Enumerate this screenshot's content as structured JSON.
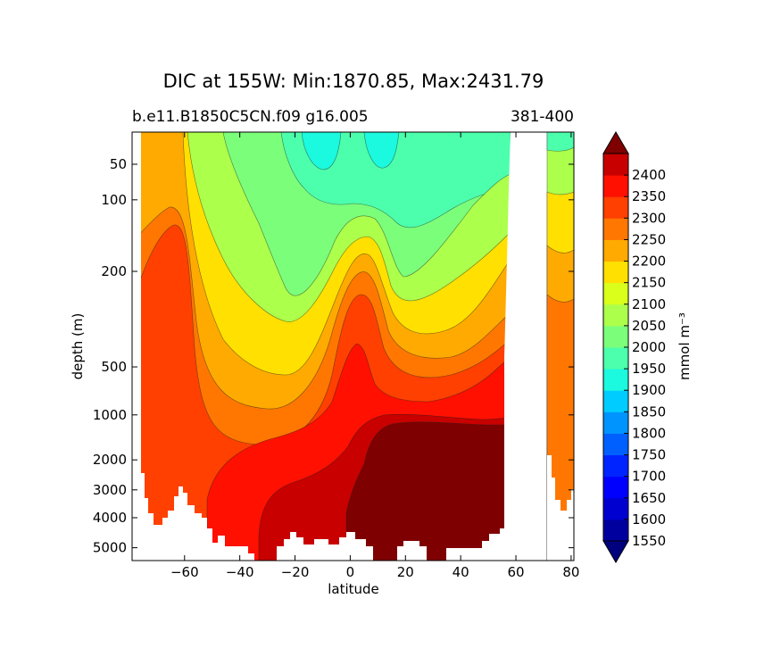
{
  "chart_data": {
    "type": "contourf",
    "title": "DIC at 155W: Min:1870.85, Max:2431.79",
    "subtitle_left": "b.e11.B1850C5CN.f09 g16.005",
    "subtitle_right": "381-400",
    "xlabel": "latitude",
    "ylabel": "depth (m)",
    "xlim": [
      -79,
      81
    ],
    "x_ticks": [
      -60,
      -40,
      -20,
      0,
      20,
      40,
      60,
      80
    ],
    "x_tick_labels": [
      "−60",
      "−40",
      "−20",
      "0",
      "20",
      "40",
      "60",
      "80"
    ],
    "ylim_depth": [
      5400,
      15
    ],
    "y_scale": "nonlinear-depth (compressed at depth)",
    "y_ticks": [
      50,
      100,
      200,
      500,
      1000,
      2000,
      3000,
      4000,
      5000
    ],
    "y_tick_labels": [
      "50",
      "100",
      "200",
      "500",
      "1000",
      "2000",
      "3000",
      "4000",
      "5000"
    ],
    "colorbar": {
      "label": "mmol m⁻³",
      "levels": [
        1550,
        1600,
        1650,
        1700,
        1750,
        1800,
        1850,
        1900,
        1950,
        2000,
        2050,
        2100,
        2150,
        2200,
        2250,
        2300,
        2350,
        2400
      ],
      "level_labels": [
        "1550",
        "1600",
        "1650",
        "1700",
        "1750",
        "1800",
        "1850",
        "1900",
        "1950",
        "2000",
        "2050",
        "2100",
        "2150",
        "2200",
        "2250",
        "2300",
        "2350",
        "2400"
      ],
      "bins": [
        {
          "range": "<1550",
          "color": "#00007f"
        },
        {
          "range": "1550-1600",
          "color": "#00009f"
        },
        {
          "range": "1600-1650",
          "color": "#0000d0"
        },
        {
          "range": "1650-1700",
          "color": "#0000ff"
        },
        {
          "range": "1700-1750",
          "color": "#0024ff"
        },
        {
          "range": "1750-1800",
          "color": "#0060ff"
        },
        {
          "range": "1800-1850",
          "color": "#0094ff"
        },
        {
          "range": "1850-1900",
          "color": "#00ccff"
        },
        {
          "range": "1900-1950",
          "color": "#1bf9de"
        },
        {
          "range": "1950-2000",
          "color": "#4bffac"
        },
        {
          "range": "2000-2050",
          "color": "#7bff7b"
        },
        {
          "range": "2050-2100",
          "color": "#acff4b"
        },
        {
          "range": "2100-2150",
          "color": "#d9ff1b"
        },
        {
          "range": "2150-2200",
          "color": "#ffe000"
        },
        {
          "range": "2200-2250",
          "color": "#ffaa00"
        },
        {
          "range": "2250-2300",
          "color": "#ff7700"
        },
        {
          "range": "2300-2350",
          "color": "#ff4000"
        },
        {
          "range": "2350-2400",
          "color": "#ff1000"
        },
        {
          "range": "2400-2450",
          "color": "#c80000"
        },
        {
          "range": ">2450",
          "color": "#7f0000"
        }
      ],
      "extend": "both"
    },
    "field_value_range": [
      1870.85,
      2431.79
    ],
    "no_data_regions": [
      "seafloor below ~4000-5000 m (white)",
      "land gap ~57N-71N (white)"
    ]
  }
}
